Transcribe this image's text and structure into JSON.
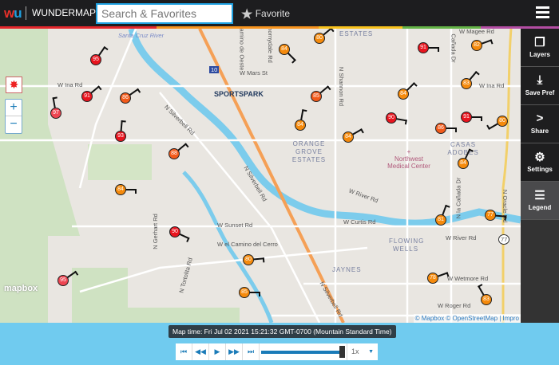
{
  "header": {
    "logo": [
      "w",
      "u"
    ],
    "brand": "WUNDERMAP",
    "search_placeholder": "Search & Favorites",
    "favorite_label": "Favorite",
    "menu_icon": "hamburger-icon"
  },
  "sidebar": {
    "items": [
      {
        "label": "Layers",
        "icon": "layers-icon"
      },
      {
        "label": "Save Pref",
        "icon": "download-icon"
      },
      {
        "label": "Share",
        "icon": "share-icon"
      },
      {
        "label": "Settings",
        "icon": "gear-icon"
      },
      {
        "label": "Legend",
        "icon": "list-icon",
        "active": true
      }
    ]
  },
  "map": {
    "labels": {
      "santa_cruz": "Santa Cruz River",
      "ina_w": "W Ina Rd",
      "ina_e": "W Ina Rd",
      "mars": "W Mars St",
      "silverbell1": "N Silverbell Rd",
      "silverbell2": "N Silverbell Rd",
      "silverbell3": "N Silverbell Rd",
      "sunset": "W Sunset Rd",
      "gerhart": "N Gerhart Rd",
      "tortolita": "N Tortolita Rd",
      "camino_cerro": "W el Camino del Cerro",
      "river1": "W River Rd",
      "river2": "W River Rd",
      "curtis": "W Curtis Rd",
      "wetmore": "W Wetmore Rd",
      "roger": "W Roger Rd",
      "magee": "W Magee Rd",
      "shannon": "N Shannon Rd",
      "canada": "Cañada Dr",
      "la_canada": "N la Cañada Dr",
      "oracle": "N Oracle Rd",
      "camino_oeste": "N Camino de Oeste",
      "thornydale": "N Thornydale Rd",
      "estates": "ESTATES",
      "orange_grove": "ORANGE GROVE ESTATES",
      "casas": "CASAS ADOBES",
      "jaynes": "JAYNES",
      "flowing": "FLOWING WELLS",
      "hospital": "Northwest Medical Center",
      "sportspark": "SPORTSPARK",
      "i10": "10",
      "sr77": "77"
    },
    "stations": [
      "95",
      "91",
      "86",
      "97",
      "93",
      "88",
      "84",
      "90",
      "80",
      "95",
      "85",
      "80",
      "84",
      "85",
      "84",
      "84",
      "91",
      "82",
      "83",
      "84",
      "90",
      "91",
      "86",
      "80",
      "84",
      "81",
      "77",
      "78",
      "83"
    ],
    "colors": {
      "red": "#e8141e",
      "orange": "#f58a0c",
      "orange_red": "#f25a1a",
      "light_red": "#ee4552",
      "accent": "#1ea0e0"
    },
    "mapbox": "mapbox",
    "attribution": "© Mapbox © OpenStreetMap | Impro"
  },
  "controls": {
    "zoom_in": "+",
    "zoom_out": "−",
    "location_icon": "radar-icon"
  },
  "timeline": {
    "map_time": "Map time: Fri Jul 02 2021 15:21:32 GMT-0700 (Mountain Standard Time)",
    "speed": "1x",
    "progress": 1.0,
    "buttons": [
      "first",
      "back",
      "play",
      "forward",
      "last"
    ]
  }
}
